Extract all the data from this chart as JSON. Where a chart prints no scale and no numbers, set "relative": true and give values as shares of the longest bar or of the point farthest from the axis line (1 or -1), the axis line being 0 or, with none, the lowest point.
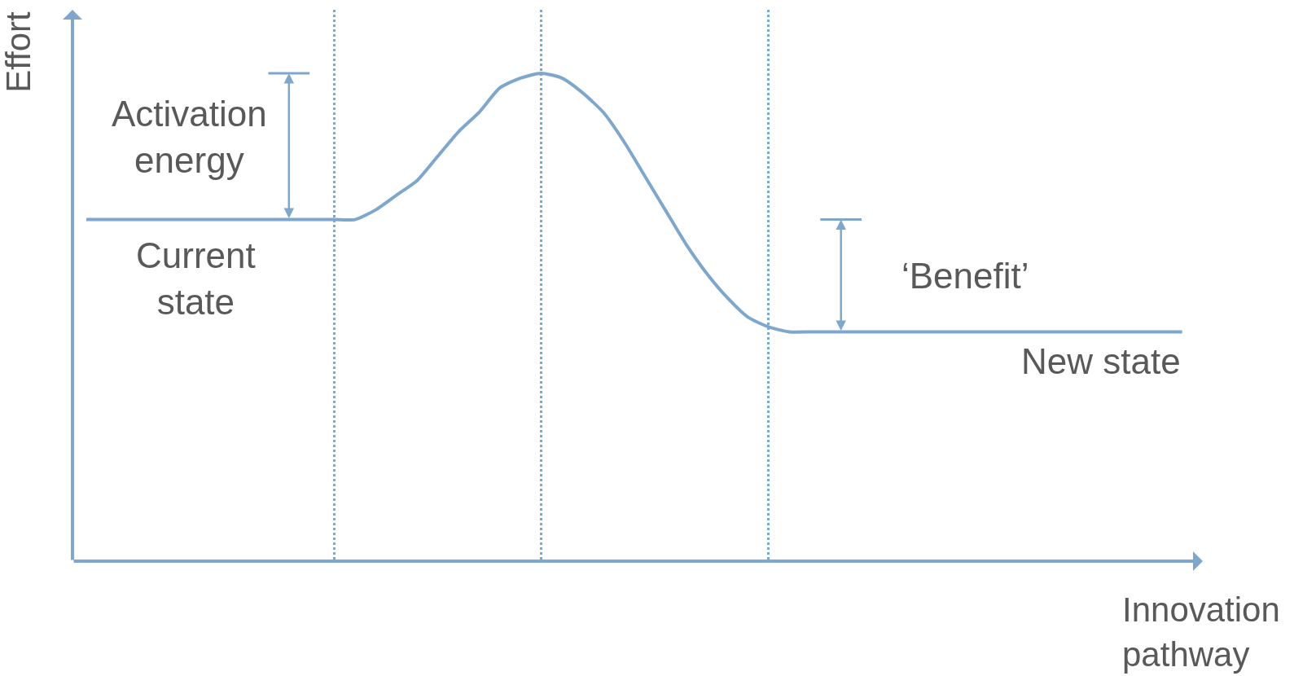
{
  "chart_data": {
    "type": "line",
    "relative": true,
    "xlabel": "Innovation\npathway",
    "ylabel": "Effort",
    "categories": [
      null,
      null,
      null,
      null,
      null,
      null,
      null,
      null,
      null,
      null,
      null,
      null,
      null,
      null,
      null,
      null,
      null,
      null,
      null,
      null,
      null,
      null,
      null,
      null,
      null,
      null,
      null,
      null,
      null,
      null,
      null,
      null,
      null,
      null,
      null,
      null,
      null,
      null,
      null,
      null,
      null,
      null,
      null,
      null,
      null,
      null,
      null,
      null,
      null,
      null,
      null,
      null,
      null,
      null
    ],
    "series": [
      {
        "color": "#7fa7cb",
        "values": [
          0.7,
          0.7,
          0.7,
          0.7,
          0.7,
          0.7,
          0.7,
          0.7,
          0.7,
          0.7,
          0.7,
          0.7,
          0.7,
          0.7,
          0.72,
          0.75,
          0.78,
          0.83,
          0.88,
          0.92,
          0.97,
          0.99,
          1.0,
          0.99,
          0.96,
          0.92,
          0.86,
          0.79,
          0.72,
          0.65,
          0.59,
          0.54,
          0.5,
          0.48,
          0.47,
          0.47,
          0.47,
          0.47,
          0.47,
          0.47,
          0.47,
          0.47,
          0.47,
          0.47,
          0.47,
          0.47,
          0.47,
          0.47,
          0.47,
          0.47,
          0.47,
          0.47,
          0.47,
          0.47
        ]
      }
    ],
    "annotations": [
      "Activation\nenergy",
      "Current\nstate",
      "‘Benefit’",
      "New state"
    ],
    "grid": "x",
    "legend": false,
    "marker": "none",
    "line_style": "solid"
  }
}
